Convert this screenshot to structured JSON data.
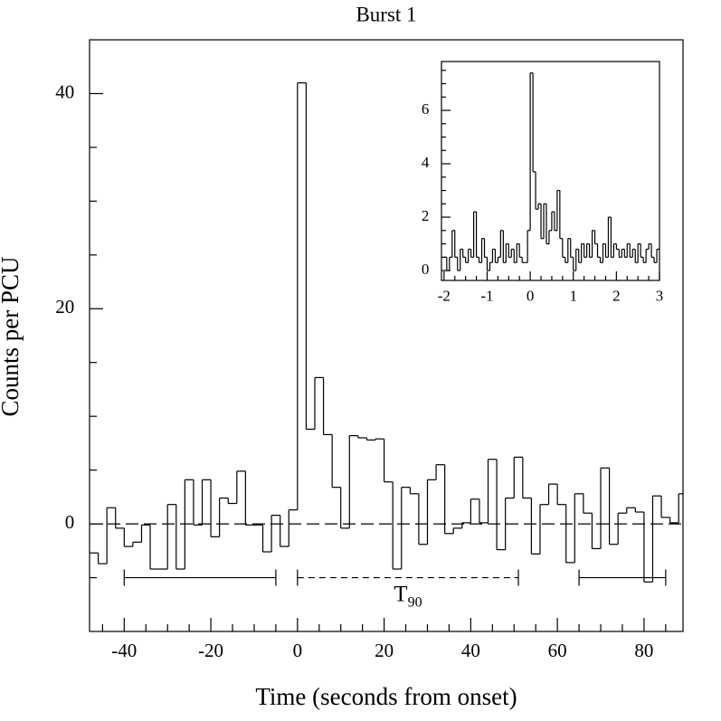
{
  "chart_data": [
    {
      "type": "histogram",
      "title": "Burst 1",
      "xlabel": "Time (seconds from onset)",
      "ylabel": "Counts per PCU",
      "bins": [
        -48,
        -46,
        -44,
        -42,
        -40,
        -38,
        -36,
        -34,
        -32,
        -30,
        -28,
        -26,
        -24,
        -22,
        -20,
        -18,
        -16,
        -14,
        -12,
        -10,
        -8,
        -6,
        -4,
        -2,
        0,
        2,
        4,
        6,
        8,
        10,
        12,
        14,
        16,
        18,
        20,
        22,
        24,
        26,
        28,
        30,
        32,
        34,
        36,
        38,
        40,
        42,
        44,
        46,
        48,
        50,
        52,
        54,
        56,
        58,
        60,
        62,
        64,
        66,
        68,
        70,
        72,
        74,
        76,
        78,
        80,
        82,
        84,
        86,
        88,
        90
      ],
      "values": [
        -2.7,
        -3.7,
        1.5,
        -0.4,
        -2.1,
        -1.7,
        -0.1,
        -4.2,
        -4.2,
        1.8,
        -4.2,
        4.1,
        -0.1,
        4.1,
        -1.2,
        2.4,
        1.9,
        4.9,
        -0.1,
        -0.1,
        -2.6,
        0.8,
        -2.1,
        1.3,
        41,
        8.8,
        13.6,
        8.3,
        3.4,
        -0.4,
        8.2,
        8.0,
        7.8,
        7.9,
        3.9,
        -4.2,
        3.4,
        2.8,
        -1.9,
        4.1,
        5.5,
        -0.9,
        -0.4,
        0.1,
        2.3,
        0.1,
        6.0,
        -2.4,
        2.4,
        6.2,
        2.4,
        -2.8,
        1.8,
        3.7,
        1.8,
        -3.6,
        2.8,
        1.0,
        -2.3,
        5.2,
        -1.9,
        1.0,
        1.5,
        1.1,
        -5.4,
        2.6,
        0.6,
        0.1,
        2.8
      ],
      "color": "#000000",
      "xlim": [
        -48,
        89
      ],
      "ylim": [
        -10,
        45
      ],
      "xticks": [
        -40,
        -20,
        0,
        20,
        40,
        60,
        80
      ],
      "yticks": [
        0,
        20,
        40
      ],
      "xminorticks": [
        -45,
        -35,
        -30,
        -25,
        -15,
        -10,
        -5,
        5,
        10,
        15,
        25,
        30,
        35,
        45,
        50,
        55,
        65,
        70,
        75,
        85
      ],
      "yminorticks": [
        -5,
        5,
        10,
        15,
        25,
        30,
        35
      ],
      "baseline": 0,
      "baseline_style": "dashed",
      "intervals": [
        {
          "start": -40,
          "end": -5,
          "level": -5,
          "style": "solid"
        },
        {
          "start": 0,
          "end": 51,
          "level": -5,
          "style": "dashed",
          "label": "T",
          "label_sub": "90"
        },
        {
          "start": 65,
          "end": 85,
          "level": -5,
          "style": "solid"
        }
      ]
    },
    {
      "type": "histogram",
      "bins": [
        -2,
        -1.9375,
        -1.875,
        -1.8125,
        -1.75,
        -1.6875,
        -1.625,
        -1.5625,
        -1.5,
        -1.4375,
        -1.375,
        -1.3125,
        -1.25,
        -1.1875,
        -1.125,
        -1.0625,
        -1,
        -0.9375,
        -0.875,
        -0.8125,
        -0.75,
        -0.6875,
        -0.625,
        -0.5625,
        -0.5,
        -0.4375,
        -0.375,
        -0.3125,
        -0.25,
        -0.1875,
        -0.125,
        -0.0625,
        0,
        0.0625,
        0.125,
        0.1875,
        0.25,
        0.3125,
        0.375,
        0.4375,
        0.5,
        0.5625,
        0.625,
        0.6875,
        0.75,
        0.8125,
        0.875,
        0.9375,
        1,
        1.0625,
        1.125,
        1.1875,
        1.25,
        1.3125,
        1.375,
        1.4375,
        1.5,
        1.5625,
        1.625,
        1.6875,
        1.75,
        1.8125,
        1.875,
        1.9375,
        2,
        2.0625,
        2.125,
        2.1875,
        2.25,
        2.3125,
        2.375,
        2.4375,
        2.5,
        2.5625,
        2.625,
        2.6875,
        2.75,
        2.8125,
        2.875,
        2.9375,
        3
      ],
      "values": [
        0.5,
        0,
        0.5,
        1.5,
        0.5,
        0,
        0.8,
        0.5,
        0.3,
        0.8,
        0.5,
        2.2,
        0.5,
        0.3,
        1.2,
        0.5,
        0,
        0.3,
        0.8,
        0.3,
        0.5,
        1.5,
        0.3,
        1,
        0.5,
        0.8,
        0.3,
        1.0,
        0.5,
        0.3,
        0.3,
        1.5,
        7.4,
        3.7,
        2.3,
        2.5,
        1.2,
        2.5,
        1.0,
        1.5,
        2.2,
        1.5,
        3.0,
        1.2,
        0.5,
        0.3,
        1.2,
        0.5,
        0,
        0.8,
        0.3,
        1.0,
        0.5,
        1.0,
        0.5,
        1.5,
        1.0,
        0.5,
        0.3,
        1.0,
        0.5,
        2.0,
        0.5,
        1.0,
        0.8,
        0.5,
        0.8,
        0.5,
        1.0,
        0.5,
        0.8,
        0.3,
        1.0,
        0.5,
        0.3,
        0.8,
        1.0,
        0.5,
        0.3,
        0.8
      ],
      "color": "#000000",
      "xlim": [
        -2.06,
        3
      ],
      "ylim": [
        -0.37,
        7.83
      ],
      "xticks": [
        -2,
        -1,
        0,
        1,
        2,
        3
      ],
      "yticks": [
        0,
        2,
        4,
        6
      ],
      "xminorticks": [
        -1.75,
        -1.5,
        -1.25,
        -0.75,
        -0.5,
        -0.25,
        0.25,
        0.5,
        0.75,
        1.25,
        1.5,
        1.75,
        2.25,
        2.5,
        2.75
      ],
      "yminorticks": [
        0.5,
        1,
        1.5,
        2.5,
        3,
        3.5,
        4.5,
        5,
        5.5,
        6.5,
        7,
        7.5
      ]
    }
  ]
}
